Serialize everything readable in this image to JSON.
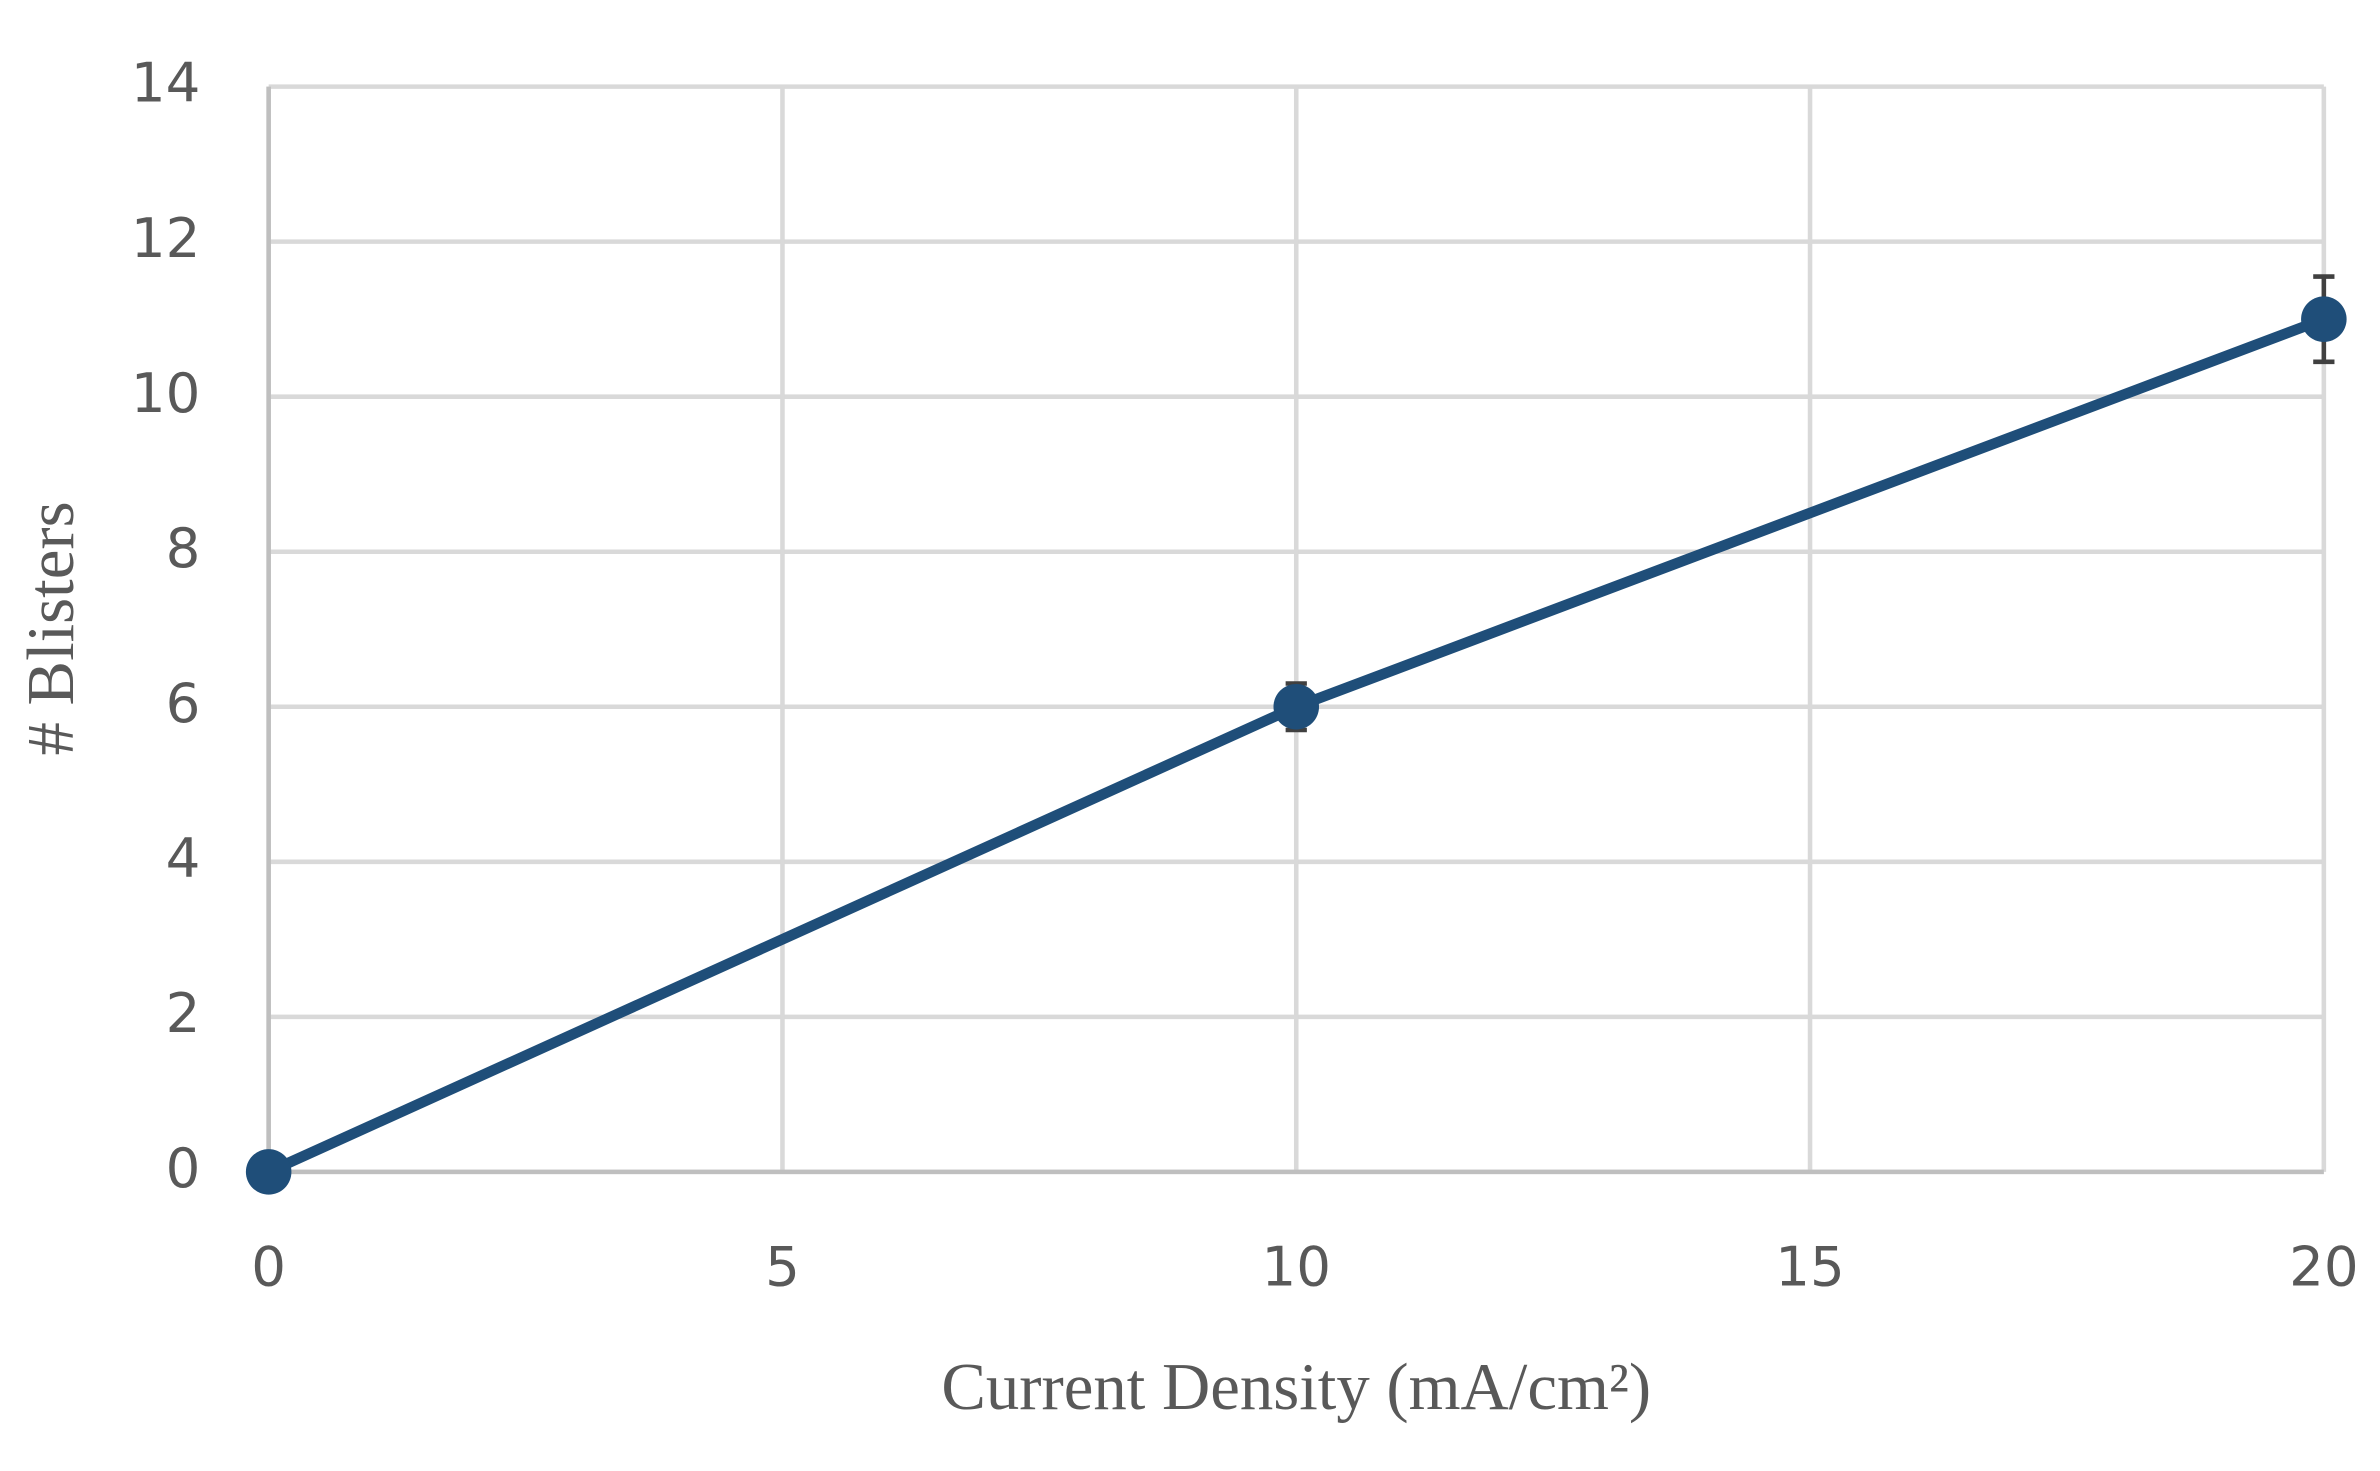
{
  "chart_data": {
    "type": "line",
    "x": [
      0,
      10,
      20
    ],
    "series": [
      {
        "color": "#1f4e79",
        "values": [
          0,
          6,
          11
        ],
        "errors": [
          0,
          0.3,
          0.55
        ]
      }
    ],
    "x_label": "Current Density (mA/cm²)",
    "y_label": "# Blisters",
    "xlim": [
      0,
      20
    ],
    "xticks": [
      0,
      5,
      10,
      15,
      20
    ],
    "ylim": [
      0,
      14
    ],
    "yticks": [
      0,
      2,
      4,
      6,
      8,
      10,
      12,
      14
    ],
    "grid": true
  }
}
